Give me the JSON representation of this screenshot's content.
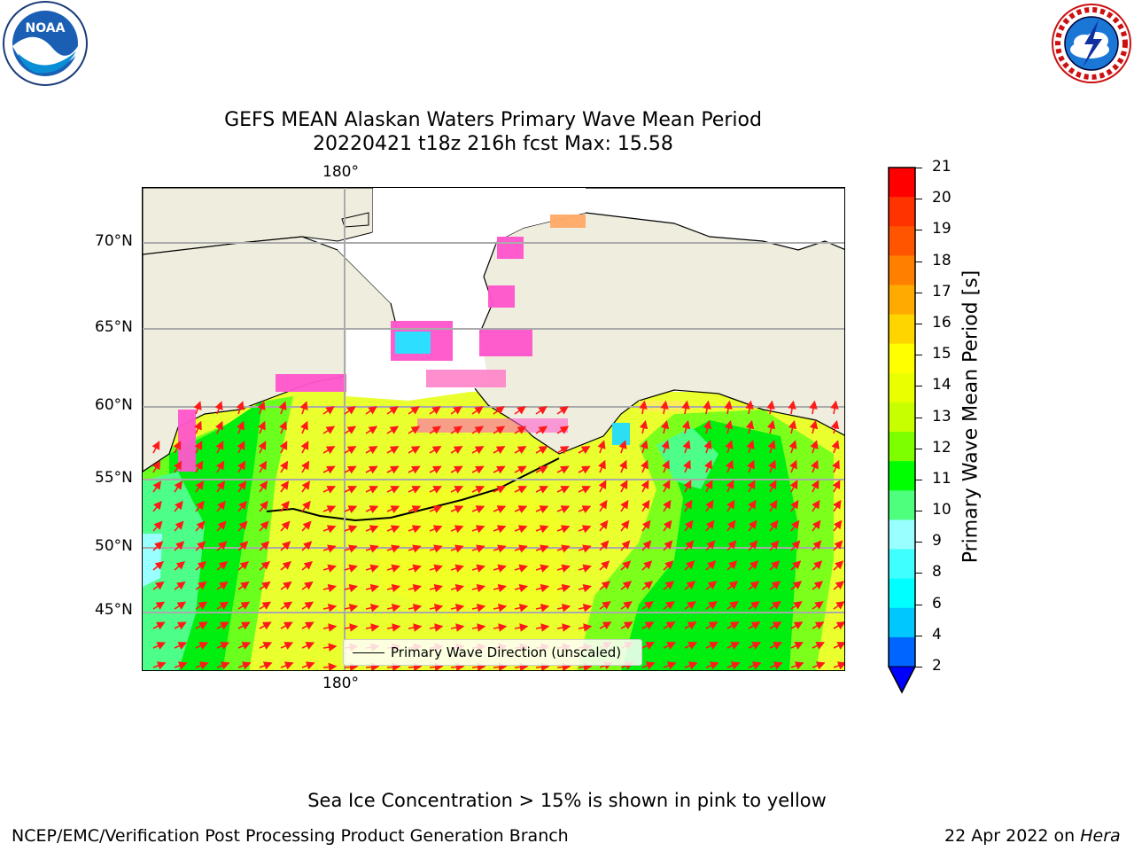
{
  "title": {
    "line1": "GEFS MEAN Alaskan Waters Primary Wave Mean Period",
    "line2": "20220421 t18z 216h fcst   Max: 15.58"
  },
  "logos": {
    "left": {
      "icon": "noaa-logo",
      "name": "NOAA"
    },
    "right": {
      "icon": "nws-logo",
      "name": "NATIONAL WEATHER SERVICE"
    }
  },
  "map": {
    "longitude_labels": [
      "180°",
      "180°"
    ],
    "latitude_labels": [
      "70°N",
      "65°N",
      "60°N",
      "55°N",
      "50°N",
      "45°N"
    ],
    "legend": "Primary Wave Direction (unscaled)",
    "colors": {
      "land": "#efedde",
      "arrow": "#ff1a1a",
      "gridline": "#aaaaaa"
    }
  },
  "colorbar": {
    "title": "Primary Wave Mean Period [s]",
    "ticks": [
      "21",
      "20",
      "19",
      "18",
      "17",
      "16",
      "15",
      "14",
      "13",
      "12",
      "11",
      "10",
      "9",
      "8",
      "6",
      "4",
      "2"
    ],
    "colors": [
      "#ff0000",
      "#ff3300",
      "#ff5500",
      "#ff8000",
      "#ffaa00",
      "#ffd500",
      "#ffff00",
      "#eaff00",
      "#c8ff00",
      "#7dff00",
      "#00ff00",
      "#4dff7d",
      "#99ffff",
      "#40ffff",
      "#00ffff",
      "#00c8ff",
      "#0064ff"
    ],
    "min_extend_color": "#0000ff"
  },
  "footer": {
    "note": "Sea Ice Concentration > 15% is shown in pink to yellow",
    "branch": "NCEP/EMC/Verification Post Processing Product Generation Branch",
    "date": "22 Apr 2022 on ",
    "system": "Hera"
  }
}
